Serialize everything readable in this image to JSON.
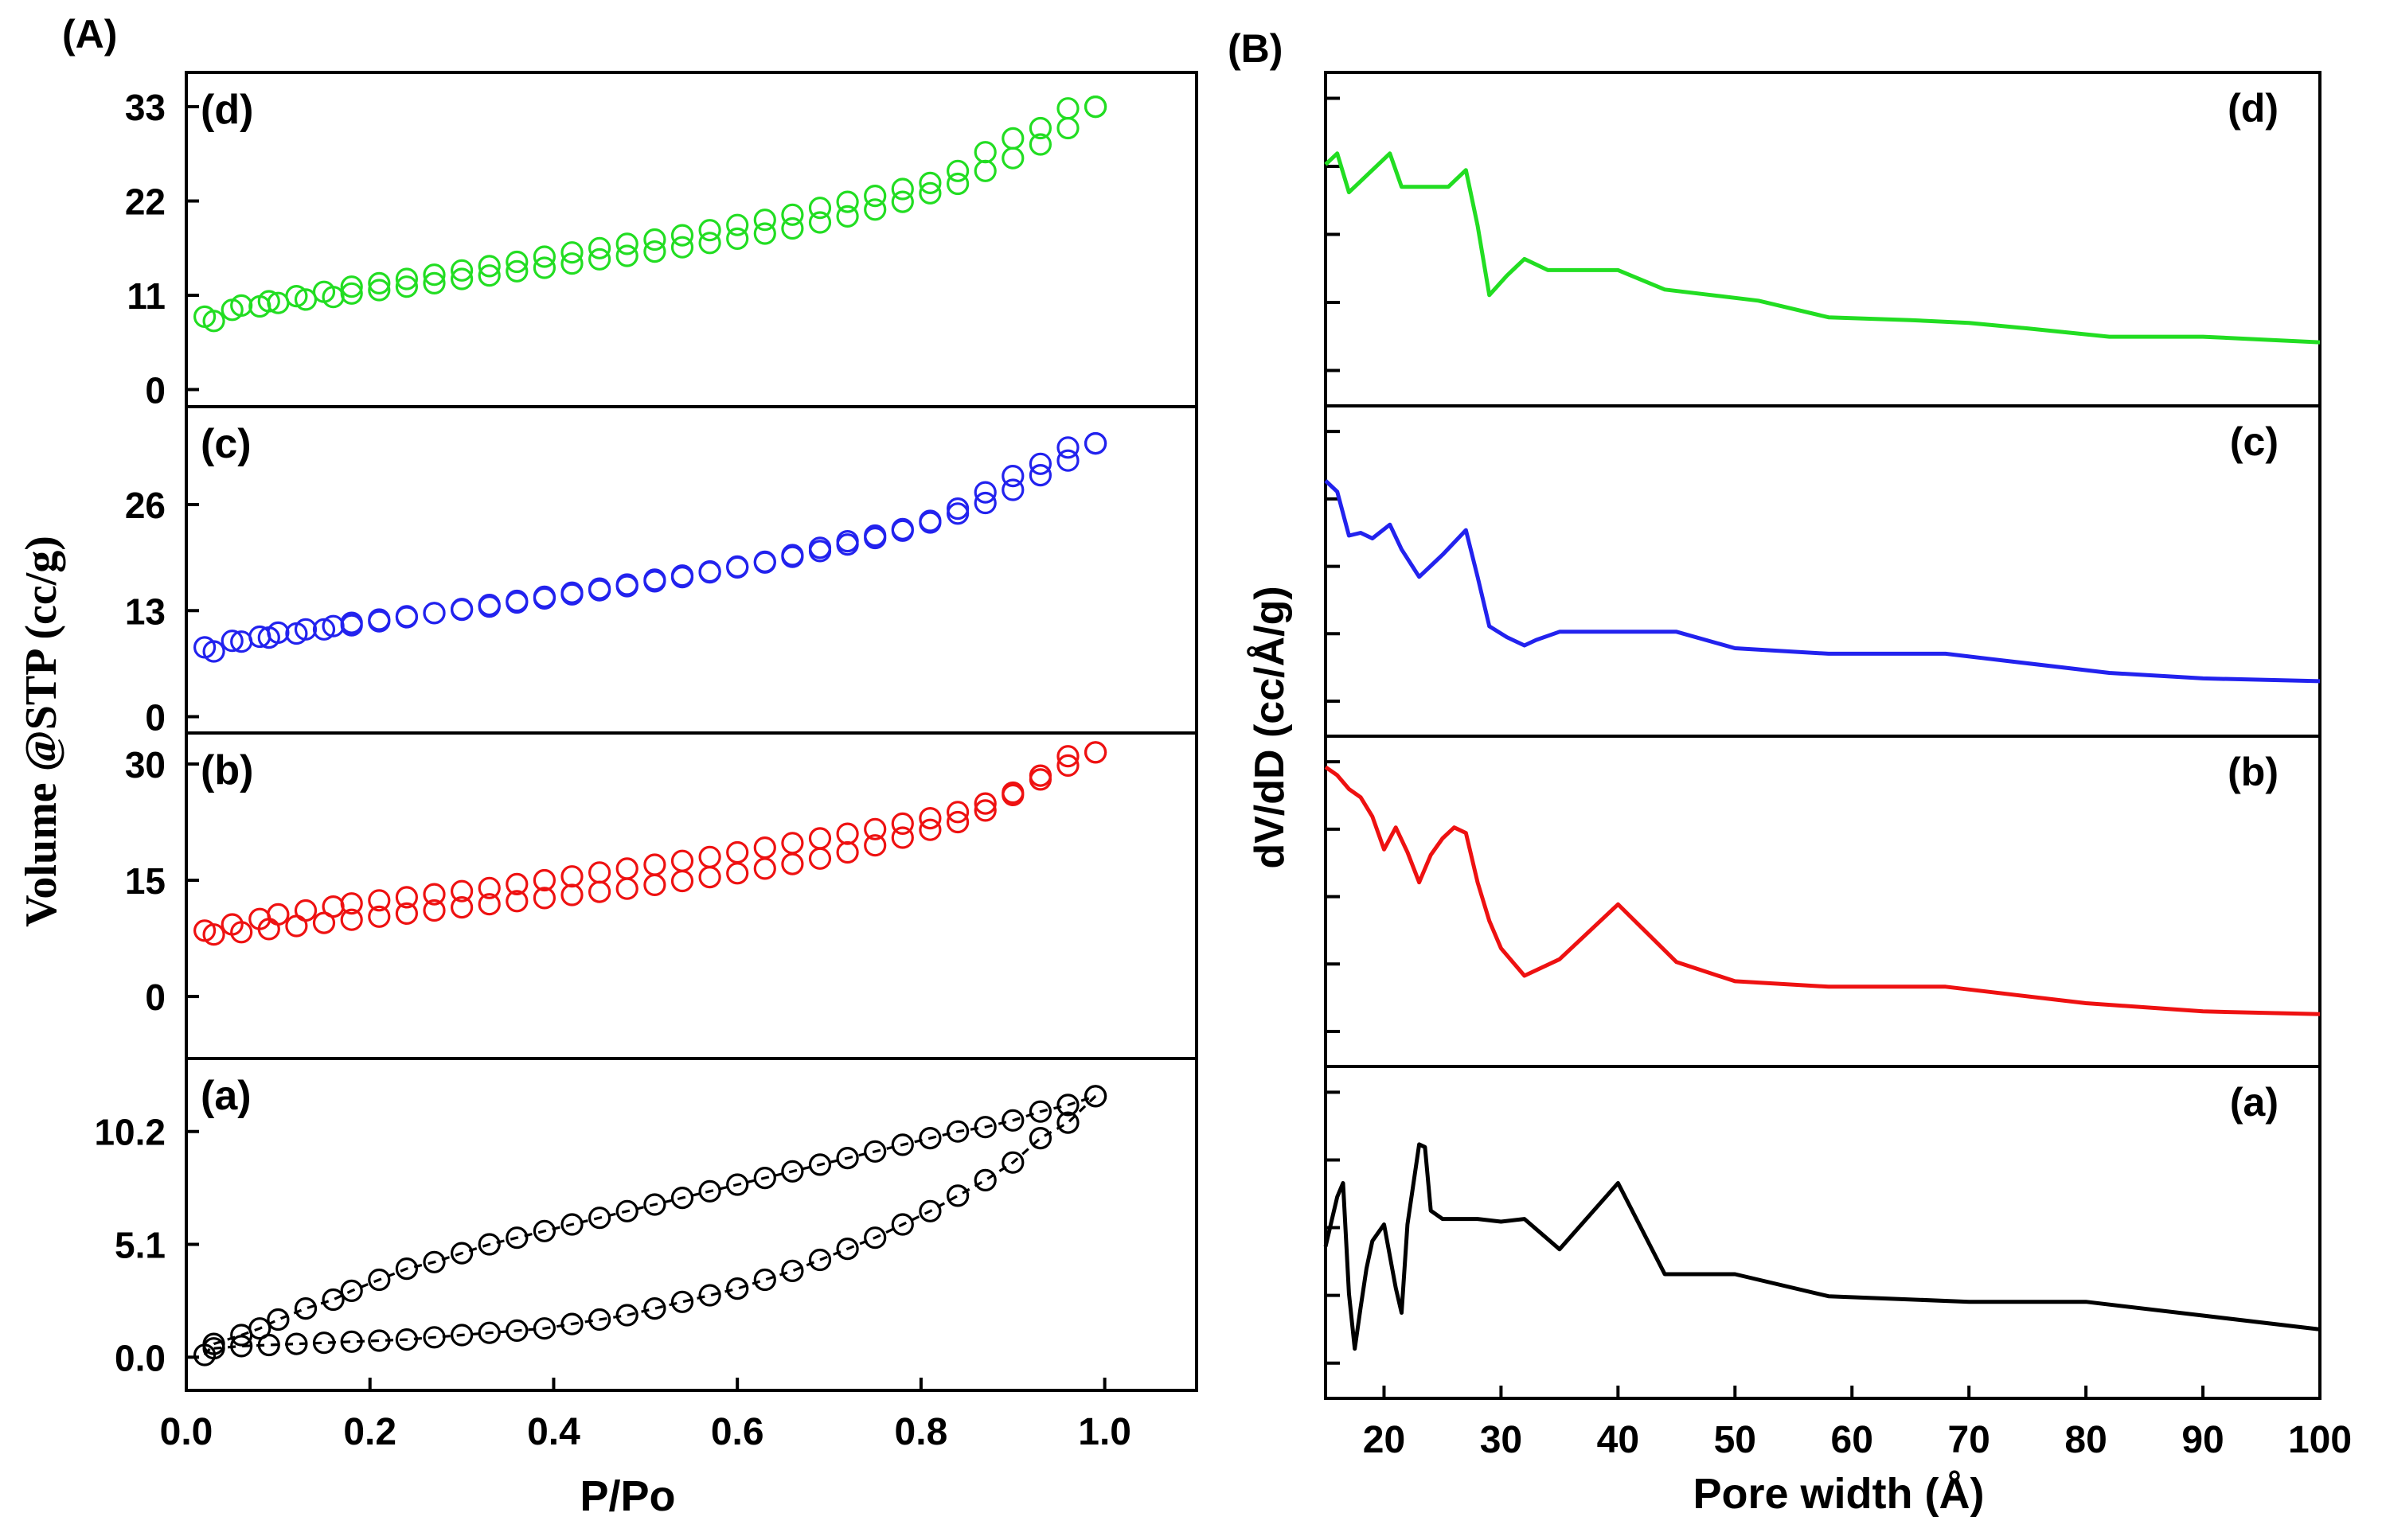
{
  "figure_labels": {
    "A": "(A)",
    "B": "(B)"
  },
  "chart_data": [
    {
      "id": "A",
      "type": "scatter",
      "title": "(A)",
      "xlabel": "P/Po",
      "ylabel": "Volume @STP (cc/g)",
      "xlim": [
        0.0,
        1.1
      ],
      "xticks": [
        0.0,
        0.2,
        0.4,
        0.6,
        0.8,
        1.0
      ],
      "xtick_labels": [
        "0.0",
        "0.2",
        "0.4",
        "0.6",
        "0.8",
        "1.0"
      ],
      "marker": "open-circle",
      "panels": [
        {
          "label": "(d)",
          "color": "#22dd22",
          "ylim": [
            -2,
            37
          ],
          "yticks": [
            0,
            11,
            22,
            33
          ],
          "ytick_labels": [
            "0",
            "11",
            "22",
            "33"
          ],
          "adsorption": {
            "x": [
              0.02,
              0.05,
              0.08,
              0.1,
              0.13,
              0.16,
              0.18,
              0.21,
              0.24,
              0.27,
              0.3,
              0.33,
              0.36,
              0.39,
              0.42,
              0.45,
              0.48,
              0.51,
              0.54,
              0.57,
              0.6,
              0.63,
              0.66,
              0.69,
              0.72,
              0.75,
              0.78,
              0.81,
              0.84,
              0.87,
              0.9,
              0.93,
              0.96,
              0.99
            ],
            "y": [
              8.5,
              9.3,
              9.7,
              10.1,
              10.5,
              10.8,
              11.2,
              11.6,
              12.0,
              12.4,
              12.9,
              13.3,
              13.8,
              14.2,
              14.7,
              15.2,
              15.6,
              16.1,
              16.6,
              17.1,
              17.6,
              18.2,
              18.8,
              19.5,
              20.2,
              21.0,
              21.9,
              22.9,
              24.0,
              25.5,
              27.0,
              28.6,
              30.5,
              33.0
            ]
          },
          "desorption": {
            "x": [
              0.99,
              0.96,
              0.93,
              0.9,
              0.87,
              0.84,
              0.81,
              0.78,
              0.75,
              0.72,
              0.69,
              0.66,
              0.63,
              0.6,
              0.57,
              0.54,
              0.51,
              0.48,
              0.45,
              0.42,
              0.39,
              0.36,
              0.33,
              0.3,
              0.27,
              0.24,
              0.21,
              0.18,
              0.15,
              0.12,
              0.09,
              0.06,
              0.03
            ],
            "y": [
              33.0,
              32.8,
              30.5,
              29.3,
              27.7,
              25.5,
              24.1,
              23.4,
              22.6,
              21.9,
              21.2,
              20.4,
              19.8,
              19.2,
              18.6,
              18.0,
              17.5,
              17.0,
              16.5,
              16.0,
              15.5,
              14.9,
              14.4,
              13.9,
              13.4,
              12.9,
              12.4,
              12.0,
              11.4,
              10.9,
              10.3,
              9.8,
              8.0
            ]
          }
        },
        {
          "label": "(c)",
          "color": "#2222ee",
          "ylim": [
            -2,
            38
          ],
          "yticks": [
            0,
            13,
            26
          ],
          "ytick_labels": [
            "0",
            "13",
            "26"
          ],
          "adsorption": {
            "x": [
              0.02,
              0.05,
              0.08,
              0.1,
              0.13,
              0.16,
              0.18,
              0.21,
              0.24,
              0.27,
              0.3,
              0.33,
              0.36,
              0.39,
              0.42,
              0.45,
              0.48,
              0.51,
              0.54,
              0.57,
              0.6,
              0.63,
              0.66,
              0.69,
              0.72,
              0.75,
              0.78,
              0.81,
              0.84,
              0.87,
              0.9,
              0.93,
              0.96,
              0.99
            ],
            "y": [
              8.5,
              9.3,
              9.8,
              10.3,
              10.7,
              11.1,
              11.5,
              11.9,
              12.3,
              12.7,
              13.1,
              13.5,
              14.0,
              14.5,
              15.0,
              15.5,
              16.0,
              16.6,
              17.1,
              17.7,
              18.3,
              18.9,
              19.6,
              20.3,
              21.1,
              21.9,
              22.8,
              23.8,
              24.9,
              26.2,
              27.8,
              29.6,
              31.4,
              33.5
            ]
          },
          "desorption": {
            "x": [
              0.99,
              0.96,
              0.93,
              0.9,
              0.87,
              0.84,
              0.81,
              0.78,
              0.75,
              0.72,
              0.69,
              0.66,
              0.63,
              0.6,
              0.57,
              0.54,
              0.51,
              0.48,
              0.45,
              0.42,
              0.39,
              0.36,
              0.33,
              0.3,
              0.27,
              0.24,
              0.21,
              0.18,
              0.15,
              0.12,
              0.09,
              0.06,
              0.03
            ],
            "y": [
              33.5,
              33.0,
              31.0,
              29.5,
              27.5,
              25.5,
              24.0,
              23.0,
              22.2,
              21.5,
              20.7,
              19.8,
              19.0,
              18.4,
              17.8,
              17.3,
              16.8,
              16.2,
              15.7,
              15.2,
              14.7,
              14.2,
              13.7,
              13.2,
              12.7,
              12.2,
              11.7,
              11.2,
              10.7,
              10.2,
              9.7,
              9.2,
              8.0
            ]
          }
        },
        {
          "label": "(b)",
          "color": "#ee1111",
          "ylim": [
            -8,
            34
          ],
          "yticks": [
            0,
            15,
            30
          ],
          "ytick_labels": [
            "0",
            "15",
            "30"
          ],
          "adsorption": {
            "x": [
              0.02,
              0.05,
              0.08,
              0.1,
              0.13,
              0.16,
              0.18,
              0.21,
              0.24,
              0.27,
              0.3,
              0.33,
              0.36,
              0.39,
              0.42,
              0.45,
              0.48,
              0.51,
              0.54,
              0.57,
              0.6,
              0.63,
              0.66,
              0.69,
              0.72,
              0.75,
              0.78,
              0.81,
              0.84,
              0.87,
              0.9,
              0.93,
              0.96,
              0.99
            ],
            "y": [
              8.5,
              9.3,
              10.0,
              10.6,
              11.1,
              11.6,
              12.0,
              12.4,
              12.8,
              13.2,
              13.6,
              14.0,
              14.5,
              15.0,
              15.5,
              16.0,
              16.5,
              17.0,
              17.5,
              18.0,
              18.6,
              19.2,
              19.8,
              20.4,
              21.0,
              21.6,
              22.3,
              23.0,
              23.8,
              24.9,
              26.3,
              28.0,
              29.8,
              31.5
            ]
          },
          "desorption": {
            "x": [
              0.99,
              0.96,
              0.93,
              0.9,
              0.87,
              0.84,
              0.81,
              0.78,
              0.75,
              0.72,
              0.69,
              0.66,
              0.63,
              0.6,
              0.57,
              0.54,
              0.51,
              0.48,
              0.45,
              0.42,
              0.39,
              0.36,
              0.33,
              0.3,
              0.27,
              0.24,
              0.21,
              0.18,
              0.15,
              0.12,
              0.09,
              0.06,
              0.03
            ],
            "y": [
              31.5,
              31.0,
              28.5,
              26.0,
              24.0,
              22.5,
              21.5,
              20.5,
              19.5,
              18.6,
              17.8,
              17.1,
              16.5,
              15.9,
              15.4,
              14.9,
              14.4,
              13.9,
              13.5,
              13.1,
              12.7,
              12.3,
              11.9,
              11.5,
              11.1,
              10.7,
              10.3,
              9.9,
              9.5,
              9.1,
              8.7,
              8.3,
              8.0
            ]
          }
        },
        {
          "label": "(a)",
          "color": "#000000",
          "ylim": [
            -1.5,
            13.5
          ],
          "yticks": [
            0.0,
            5.1,
            10.2
          ],
          "ytick_labels": [
            "0.0",
            "5.1",
            "10.2"
          ],
          "adsorption": {
            "x": [
              0.02,
              0.03,
              0.06,
              0.08,
              0.1,
              0.13,
              0.16,
              0.18,
              0.21,
              0.24,
              0.27,
              0.3,
              0.33,
              0.36,
              0.39,
              0.42,
              0.45,
              0.48,
              0.51,
              0.54,
              0.57,
              0.6,
              0.63,
              0.66,
              0.69,
              0.72,
              0.75,
              0.78,
              0.81,
              0.84,
              0.87,
              0.9,
              0.93,
              0.96,
              0.99
            ],
            "y": [
              0.1,
              0.6,
              1.0,
              1.3,
              1.7,
              2.2,
              2.6,
              3.0,
              3.5,
              4.0,
              4.3,
              4.7,
              5.1,
              5.4,
              5.7,
              6.0,
              6.3,
              6.6,
              6.9,
              7.2,
              7.5,
              7.8,
              8.1,
              8.4,
              8.7,
              9.0,
              9.3,
              9.6,
              9.9,
              10.2,
              10.4,
              10.7,
              11.1,
              11.4,
              11.8
            ]
          },
          "desorption": {
            "x": [
              0.99,
              0.96,
              0.93,
              0.9,
              0.87,
              0.84,
              0.81,
              0.78,
              0.75,
              0.72,
              0.69,
              0.66,
              0.63,
              0.6,
              0.57,
              0.54,
              0.51,
              0.48,
              0.45,
              0.42,
              0.39,
              0.36,
              0.33,
              0.3,
              0.27,
              0.24,
              0.21,
              0.18,
              0.15,
              0.12,
              0.09,
              0.06,
              0.03
            ],
            "y": [
              11.8,
              10.6,
              9.9,
              8.8,
              8.0,
              7.3,
              6.6,
              6.0,
              5.4,
              4.9,
              4.4,
              3.9,
              3.5,
              3.1,
              2.8,
              2.5,
              2.2,
              1.9,
              1.7,
              1.5,
              1.3,
              1.2,
              1.1,
              1.0,
              0.9,
              0.8,
              0.75,
              0.7,
              0.65,
              0.6,
              0.55,
              0.5,
              0.4
            ]
          }
        }
      ]
    },
    {
      "id": "B",
      "type": "line",
      "title": "(B)",
      "xlabel": "Pore width (Å)",
      "ylabel": "dV/dD (cc/Å/g)",
      "xlim": [
        15,
        100
      ],
      "xticks": [
        20,
        30,
        40,
        50,
        60,
        70,
        80,
        90,
        100
      ],
      "xtick_labels": [
        "20",
        "30",
        "40",
        "50",
        "60",
        "70",
        "80",
        "90",
        "100"
      ],
      "panels": [
        {
          "label": "(d)",
          "color": "#22dd22",
          "ylim": [
            0,
            1
          ],
          "x": [
            15,
            16,
            17,
            18,
            19,
            20.5,
            21.5,
            22.5,
            23.5,
            24.5,
            25.5,
            27,
            28,
            29,
            30.5,
            32,
            34,
            36,
            40,
            44,
            48,
            52,
            58,
            65,
            70,
            75,
            82,
            90,
            95,
            100
          ],
          "y": [
            0.74,
            0.78,
            0.64,
            0.68,
            0.72,
            0.78,
            0.66,
            0.66,
            0.66,
            0.66,
            0.66,
            0.72,
            0.52,
            0.27,
            0.34,
            0.4,
            0.36,
            0.36,
            0.36,
            0.29,
            0.27,
            0.25,
            0.19,
            0.18,
            0.17,
            0.15,
            0.12,
            0.12,
            0.11,
            0.1
          ]
        },
        {
          "label": "(c)",
          "color": "#2222ee",
          "ylim": [
            0,
            1
          ],
          "x": [
            15,
            16,
            17,
            18,
            19,
            20.5,
            21.5,
            23,
            24,
            25,
            27,
            28,
            29,
            30.5,
            32,
            33,
            35,
            37,
            40,
            45,
            50,
            58,
            68,
            72,
            82,
            90,
            100
          ],
          "y": [
            0.8,
            0.76,
            0.6,
            0.61,
            0.59,
            0.64,
            0.55,
            0.45,
            0.49,
            0.53,
            0.62,
            0.45,
            0.27,
            0.23,
            0.2,
            0.22,
            0.25,
            0.25,
            0.25,
            0.25,
            0.19,
            0.17,
            0.17,
            0.15,
            0.1,
            0.08,
            0.07
          ]
        },
        {
          "label": "(b)",
          "color": "#ee1111",
          "ylim": [
            0,
            1
          ],
          "x": [
            15,
            16,
            17,
            18,
            19,
            20,
            21,
            22,
            23,
            24,
            25,
            26,
            27,
            28,
            29,
            30,
            32,
            35,
            40,
            45,
            50,
            58,
            68,
            80,
            90,
            100
          ],
          "y": [
            0.96,
            0.93,
            0.88,
            0.85,
            0.78,
            0.66,
            0.74,
            0.65,
            0.54,
            0.64,
            0.7,
            0.74,
            0.72,
            0.54,
            0.4,
            0.3,
            0.2,
            0.26,
            0.46,
            0.25,
            0.18,
            0.16,
            0.16,
            0.1,
            0.07,
            0.06
          ]
        },
        {
          "label": "(a)",
          "color": "#000000",
          "ylim": [
            0,
            1
          ],
          "x": [
            15,
            16,
            16.5,
            17,
            17.5,
            18,
            18.5,
            19,
            20,
            21,
            21.5,
            22,
            23,
            23.5,
            24,
            25,
            27,
            28,
            30,
            32,
            35,
            40,
            44,
            46,
            50,
            58,
            70,
            80,
            90,
            100
          ],
          "y": [
            0.42,
            0.6,
            0.65,
            0.25,
            0.05,
            0.2,
            0.34,
            0.44,
            0.5,
            0.27,
            0.18,
            0.5,
            0.79,
            0.78,
            0.55,
            0.52,
            0.52,
            0.52,
            0.51,
            0.52,
            0.41,
            0.65,
            0.32,
            0.32,
            0.32,
            0.24,
            0.22,
            0.22,
            0.17,
            0.12
          ]
        }
      ]
    }
  ]
}
